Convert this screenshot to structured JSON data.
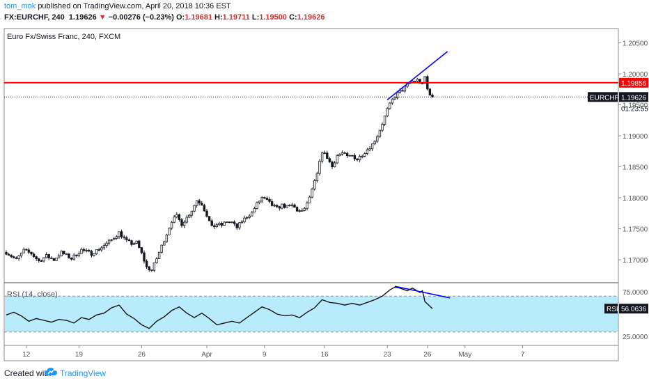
{
  "header": {
    "author": "tom_mok",
    "published": "published on TradingView.com, April 20, 2018 10:36 EST",
    "symbol_line": "FX:EURCHF, 240",
    "last": "1.19626",
    "change": "−0.00276 (−0.23%)",
    "ohlc_o": "O:",
    "ohlc_o_val": "1.19681",
    "ohlc_h": "H:",
    "ohlc_h_val": "1.19711",
    "ohlc_l": "L:",
    "ohlc_l_val": "1.19500",
    "ohlc_c": "C:",
    "ohlc_c_val": "1.19626"
  },
  "footer": {
    "created_with": "Created with",
    "brand": "TradingView"
  },
  "colors": {
    "up": "#131722",
    "down": "#131722",
    "resistance": "#ff0000",
    "trendline": "#0000ff",
    "rsi_fill": "#b8ecfc",
    "text_red": "#d32f2f",
    "accent": "#2196f3"
  },
  "chart_data": [
    {
      "type": "candlestick",
      "title": "Euro Fx/Swiss Franc, 240, FXCM",
      "x_tick_labels": [
        "12",
        "19",
        "26",
        "Apr",
        "9",
        "16",
        "23",
        "26",
        "May",
        "7"
      ],
      "y_tick_labels": [
        "1.20500",
        "1.20000",
        "1.19500",
        "1.19000",
        "1.18500",
        "1.18000",
        "1.17500",
        "1.17000"
      ],
      "ylim": [
        1.1663,
        1.2073
      ],
      "price_path": [
        [
          0,
          1.1712
        ],
        [
          4,
          1.17
        ],
        [
          7,
          1.1715
        ],
        [
          10,
          1.171
        ],
        [
          13,
          1.1698
        ],
        [
          16,
          1.1706
        ],
        [
          19,
          1.17
        ],
        [
          22,
          1.1712
        ],
        [
          26,
          1.1702
        ],
        [
          30,
          1.1716
        ],
        [
          34,
          1.171
        ],
        [
          38,
          1.172
        ],
        [
          42,
          1.1732
        ],
        [
          45,
          1.1744
        ],
        [
          48,
          1.173
        ],
        [
          50,
          1.1726
        ],
        [
          52,
          1.1728
        ],
        [
          54,
          1.171
        ],
        [
          56,
          1.1688
        ],
        [
          58,
          1.1683
        ],
        [
          60,
          1.1702
        ],
        [
          62,
          1.1722
        ],
        [
          64,
          1.1742
        ],
        [
          66,
          1.1763
        ],
        [
          68,
          1.177
        ],
        [
          70,
          1.1758
        ],
        [
          72,
          1.1768
        ],
        [
          74,
          1.178
        ],
        [
          76,
          1.1796
        ],
        [
          78,
          1.179
        ],
        [
          80,
          1.1772
        ],
        [
          82,
          1.1752
        ],
        [
          84,
          1.1757
        ],
        [
          86,
          1.1756
        ],
        [
          88,
          1.1762
        ],
        [
          90,
          1.176
        ],
        [
          92,
          1.1752
        ],
        [
          94,
          1.1762
        ],
        [
          96,
          1.177
        ],
        [
          98,
          1.1776
        ],
        [
          100,
          1.179
        ],
        [
          102,
          1.18
        ],
        [
          104,
          1.1795
        ],
        [
          106,
          1.1788
        ],
        [
          108,
          1.1783
        ],
        [
          110,
          1.1788
        ],
        [
          112,
          1.1785
        ],
        [
          114,
          1.1788
        ],
        [
          116,
          1.178
        ],
        [
          118,
          1.1777
        ],
        [
          120,
          1.179
        ],
        [
          122,
          1.1812
        ],
        [
          124,
          1.1838
        ],
        [
          126,
          1.1875
        ],
        [
          128,
          1.1865
        ],
        [
          130,
          1.185
        ],
        [
          132,
          1.1868
        ],
        [
          134,
          1.1872
        ],
        [
          136,
          1.1866
        ],
        [
          138,
          1.1868
        ],
        [
          140,
          1.1862
        ],
        [
          142,
          1.187
        ],
        [
          144,
          1.1878
        ],
        [
          146,
          1.1886
        ],
        [
          148,
          1.19
        ],
        [
          150,
          1.192
        ],
        [
          152,
          1.1942
        ],
        [
          154,
          1.1958
        ],
        [
          156,
          1.1968
        ],
        [
          158,
          1.1974
        ],
        [
          160,
          1.1982
        ],
        [
          162,
          1.1988
        ],
        [
          164,
          1.199
        ],
        [
          166,
          1.1982
        ],
        [
          167,
          1.1995
        ],
        [
          168,
          1.1975
        ],
        [
          169,
          1.1968
        ],
        [
          170,
          1.1963
        ]
      ],
      "visible_bars": 171,
      "resistance": {
        "value": 1.19856,
        "label": "1.19856"
      },
      "last_price": {
        "symbol": "EURCHF",
        "value": 1.19626,
        "label": "1.19626",
        "countdown": "01:23:55"
      },
      "trendline": {
        "from": [
          152,
          1.1958
        ],
        "to": [
          176,
          1.2036
        ]
      }
    },
    {
      "type": "line",
      "title": "RSI (14, close)",
      "y_tick_labels": [
        "75.0000",
        "56.0636",
        "25.0000"
      ],
      "ylim": [
        15,
        85
      ],
      "levels": [
        70,
        30
      ],
      "rsi_path": [
        [
          0,
          49
        ],
        [
          3,
          52
        ],
        [
          6,
          48
        ],
        [
          9,
          42
        ],
        [
          12,
          45
        ],
        [
          15,
          43
        ],
        [
          18,
          41
        ],
        [
          21,
          44
        ],
        [
          24,
          43
        ],
        [
          27,
          40
        ],
        [
          30,
          46
        ],
        [
          33,
          44
        ],
        [
          36,
          49
        ],
        [
          39,
          51
        ],
        [
          42,
          57
        ],
        [
          45,
          60
        ],
        [
          48,
          50
        ],
        [
          51,
          45
        ],
        [
          54,
          38
        ],
        [
          57,
          34
        ],
        [
          60,
          42
        ],
        [
          63,
          47
        ],
        [
          66,
          54
        ],
        [
          69,
          58
        ],
        [
          72,
          51
        ],
        [
          75,
          46
        ],
        [
          78,
          51
        ],
        [
          81,
          45
        ],
        [
          84,
          38
        ],
        [
          87,
          40
        ],
        [
          90,
          42
        ],
        [
          93,
          40
        ],
        [
          96,
          46
        ],
        [
          99,
          52
        ],
        [
          102,
          58
        ],
        [
          105,
          55
        ],
        [
          108,
          50
        ],
        [
          111,
          48
        ],
        [
          114,
          49
        ],
        [
          117,
          46
        ],
        [
          120,
          52
        ],
        [
          123,
          57
        ],
        [
          126,
          66
        ],
        [
          129,
          63
        ],
        [
          132,
          62
        ],
        [
          135,
          60
        ],
        [
          138,
          62
        ],
        [
          141,
          60
        ],
        [
          144,
          63
        ],
        [
          147,
          66
        ],
        [
          150,
          70
        ],
        [
          153,
          77
        ],
        [
          155,
          80
        ],
        [
          157,
          79
        ],
        [
          160,
          76
        ],
        [
          162,
          79
        ],
        [
          165,
          74
        ],
        [
          166,
          76
        ],
        [
          167,
          64
        ],
        [
          170,
          56
        ]
      ],
      "last": {
        "label": "RSI",
        "value": 56.0636,
        "text": "56.0636"
      },
      "trendline": {
        "from": [
          155,
          81
        ],
        "to": [
          177,
          68
        ]
      }
    }
  ]
}
